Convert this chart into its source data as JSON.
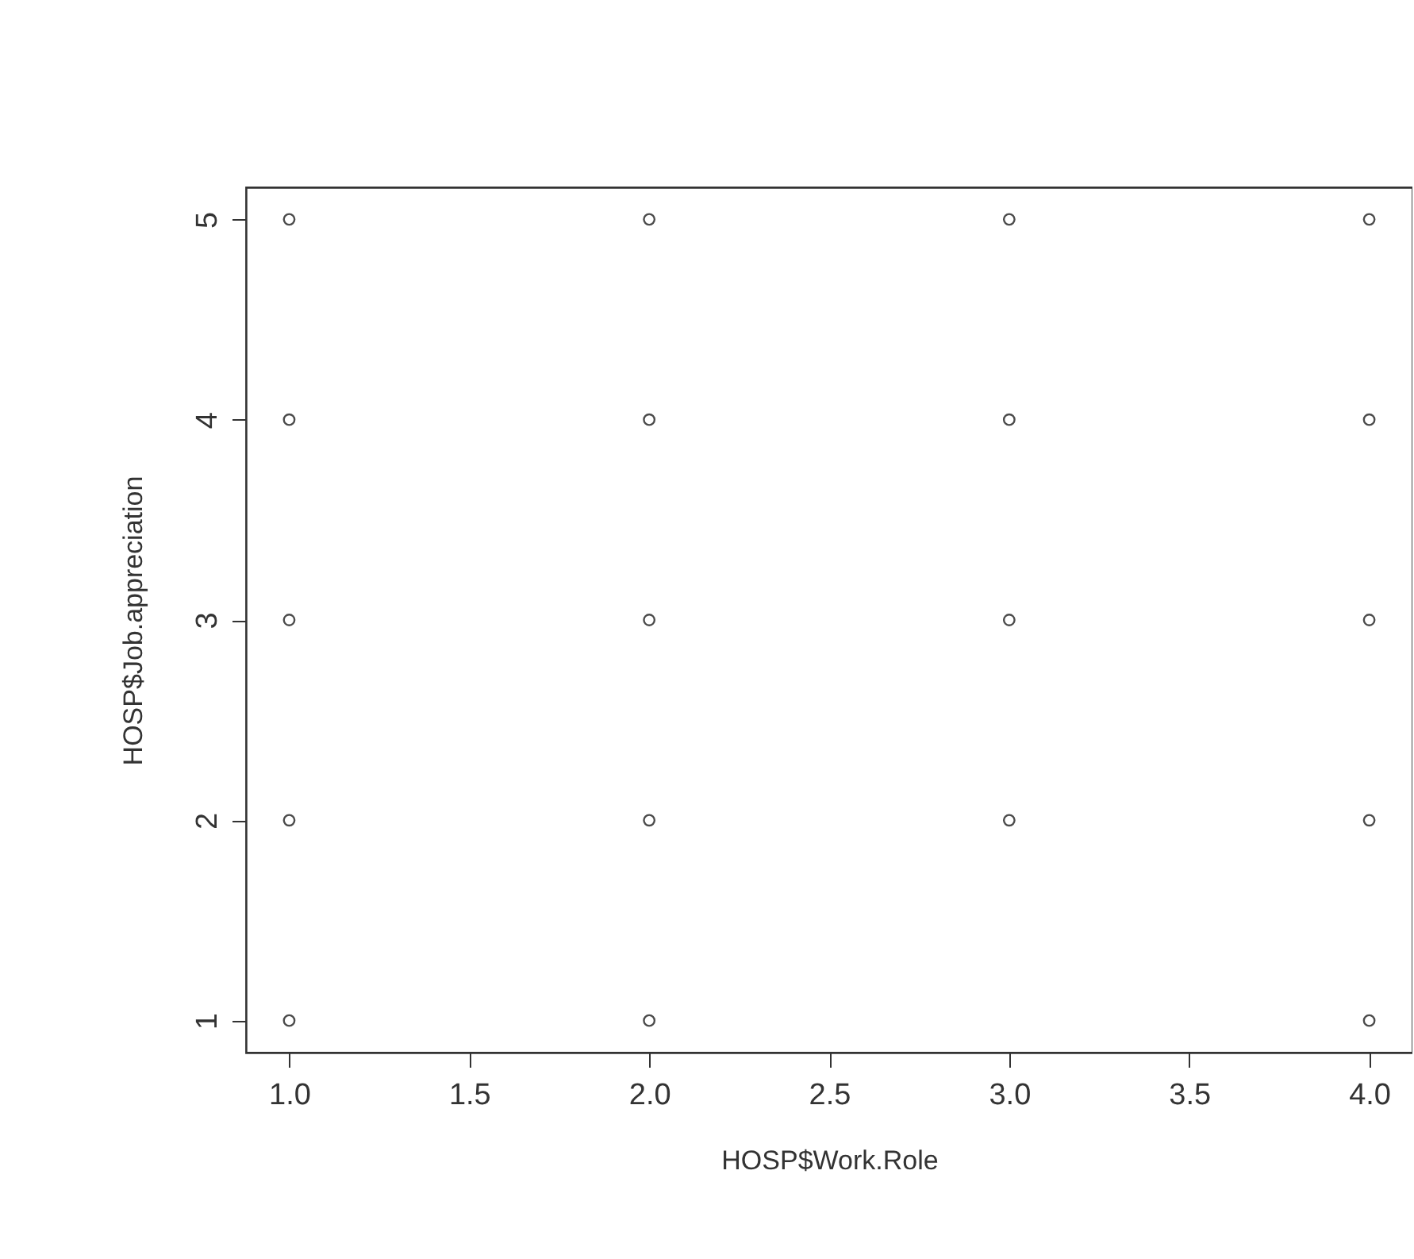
{
  "chart_data": {
    "type": "scatter",
    "xlabel": "HOSP$Work.Role",
    "ylabel": "HOSP$Job.appreciation",
    "x": [
      1,
      1,
      1,
      1,
      1,
      2,
      2,
      2,
      2,
      2,
      3,
      3,
      3,
      3,
      4,
      4,
      4,
      4,
      4
    ],
    "series": [
      {
        "color": "#000000",
        "values": [
          1,
          2,
          3,
          4,
          5,
          1,
          2,
          3,
          4,
          5,
          2,
          3,
          4,
          5,
          1,
          2,
          3,
          4,
          5
        ]
      }
    ],
    "xlim": [
      0.88,
      4.12
    ],
    "ylim": [
      0.84,
      5.16
    ],
    "xticks": [
      {
        "value": 1,
        "label": "1.0"
      },
      {
        "value": 1.5,
        "label": "1.5"
      },
      {
        "value": 2,
        "label": "2.0"
      },
      {
        "value": 2.5,
        "label": "2.5"
      },
      {
        "value": 3,
        "label": "3.0"
      },
      {
        "value": 3.5,
        "label": "3.5"
      },
      {
        "value": 4,
        "label": "4.0"
      }
    ],
    "yticks": [
      1,
      2,
      3,
      4,
      5
    ],
    "marker": "circle",
    "grid": false,
    "legend": false
  }
}
